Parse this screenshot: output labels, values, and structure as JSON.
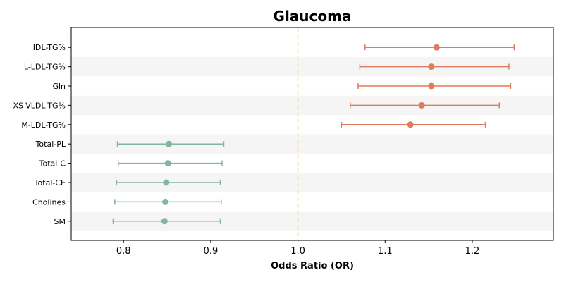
{
  "chart_data": {
    "type": "scatter",
    "subtype": "forest-plot",
    "title": "Glaucoma",
    "xlabel": "Odds Ratio (OR)",
    "ylabel": "",
    "xlim": [
      0.74,
      1.293
    ],
    "xticks": [
      "0.8",
      "0.9",
      "1.0",
      "1.1",
      "1.2"
    ],
    "xtick_values": [
      0.8,
      0.9,
      1.0,
      1.1,
      1.2
    ],
    "reference_line": 1.0,
    "reference_line_style": "dashed",
    "grid": false,
    "banded_rows": true,
    "colors": {
      "risk": "#e07b5f",
      "protective": "#84b59d",
      "reference": "#f5c77e",
      "band": "#f5f5f5",
      "axis": "#000000"
    },
    "rows": [
      {
        "label": "IDL-TG%",
        "or": 1.159,
        "lower": 1.077,
        "upper": 1.248,
        "group": "risk"
      },
      {
        "label": "L-LDL-TG%",
        "or": 1.153,
        "lower": 1.071,
        "upper": 1.242,
        "group": "risk"
      },
      {
        "label": "Gln",
        "or": 1.153,
        "lower": 1.069,
        "upper": 1.244,
        "group": "risk"
      },
      {
        "label": "XS-VLDL-TG%",
        "or": 1.142,
        "lower": 1.06,
        "upper": 1.231,
        "group": "risk"
      },
      {
        "label": "M-LDL-TG%",
        "or": 1.129,
        "lower": 1.05,
        "upper": 1.215,
        "group": "risk"
      },
      {
        "label": "Total-PL",
        "or": 0.852,
        "lower": 0.793,
        "upper": 0.915,
        "group": "protective"
      },
      {
        "label": "Total-C",
        "or": 0.851,
        "lower": 0.794,
        "upper": 0.913,
        "group": "protective"
      },
      {
        "label": "Total-CE",
        "or": 0.849,
        "lower": 0.792,
        "upper": 0.911,
        "group": "protective"
      },
      {
        "label": "Cholines",
        "or": 0.848,
        "lower": 0.79,
        "upper": 0.912,
        "group": "protective"
      },
      {
        "label": "SM",
        "or": 0.847,
        "lower": 0.788,
        "upper": 0.911,
        "group": "protective"
      }
    ]
  }
}
